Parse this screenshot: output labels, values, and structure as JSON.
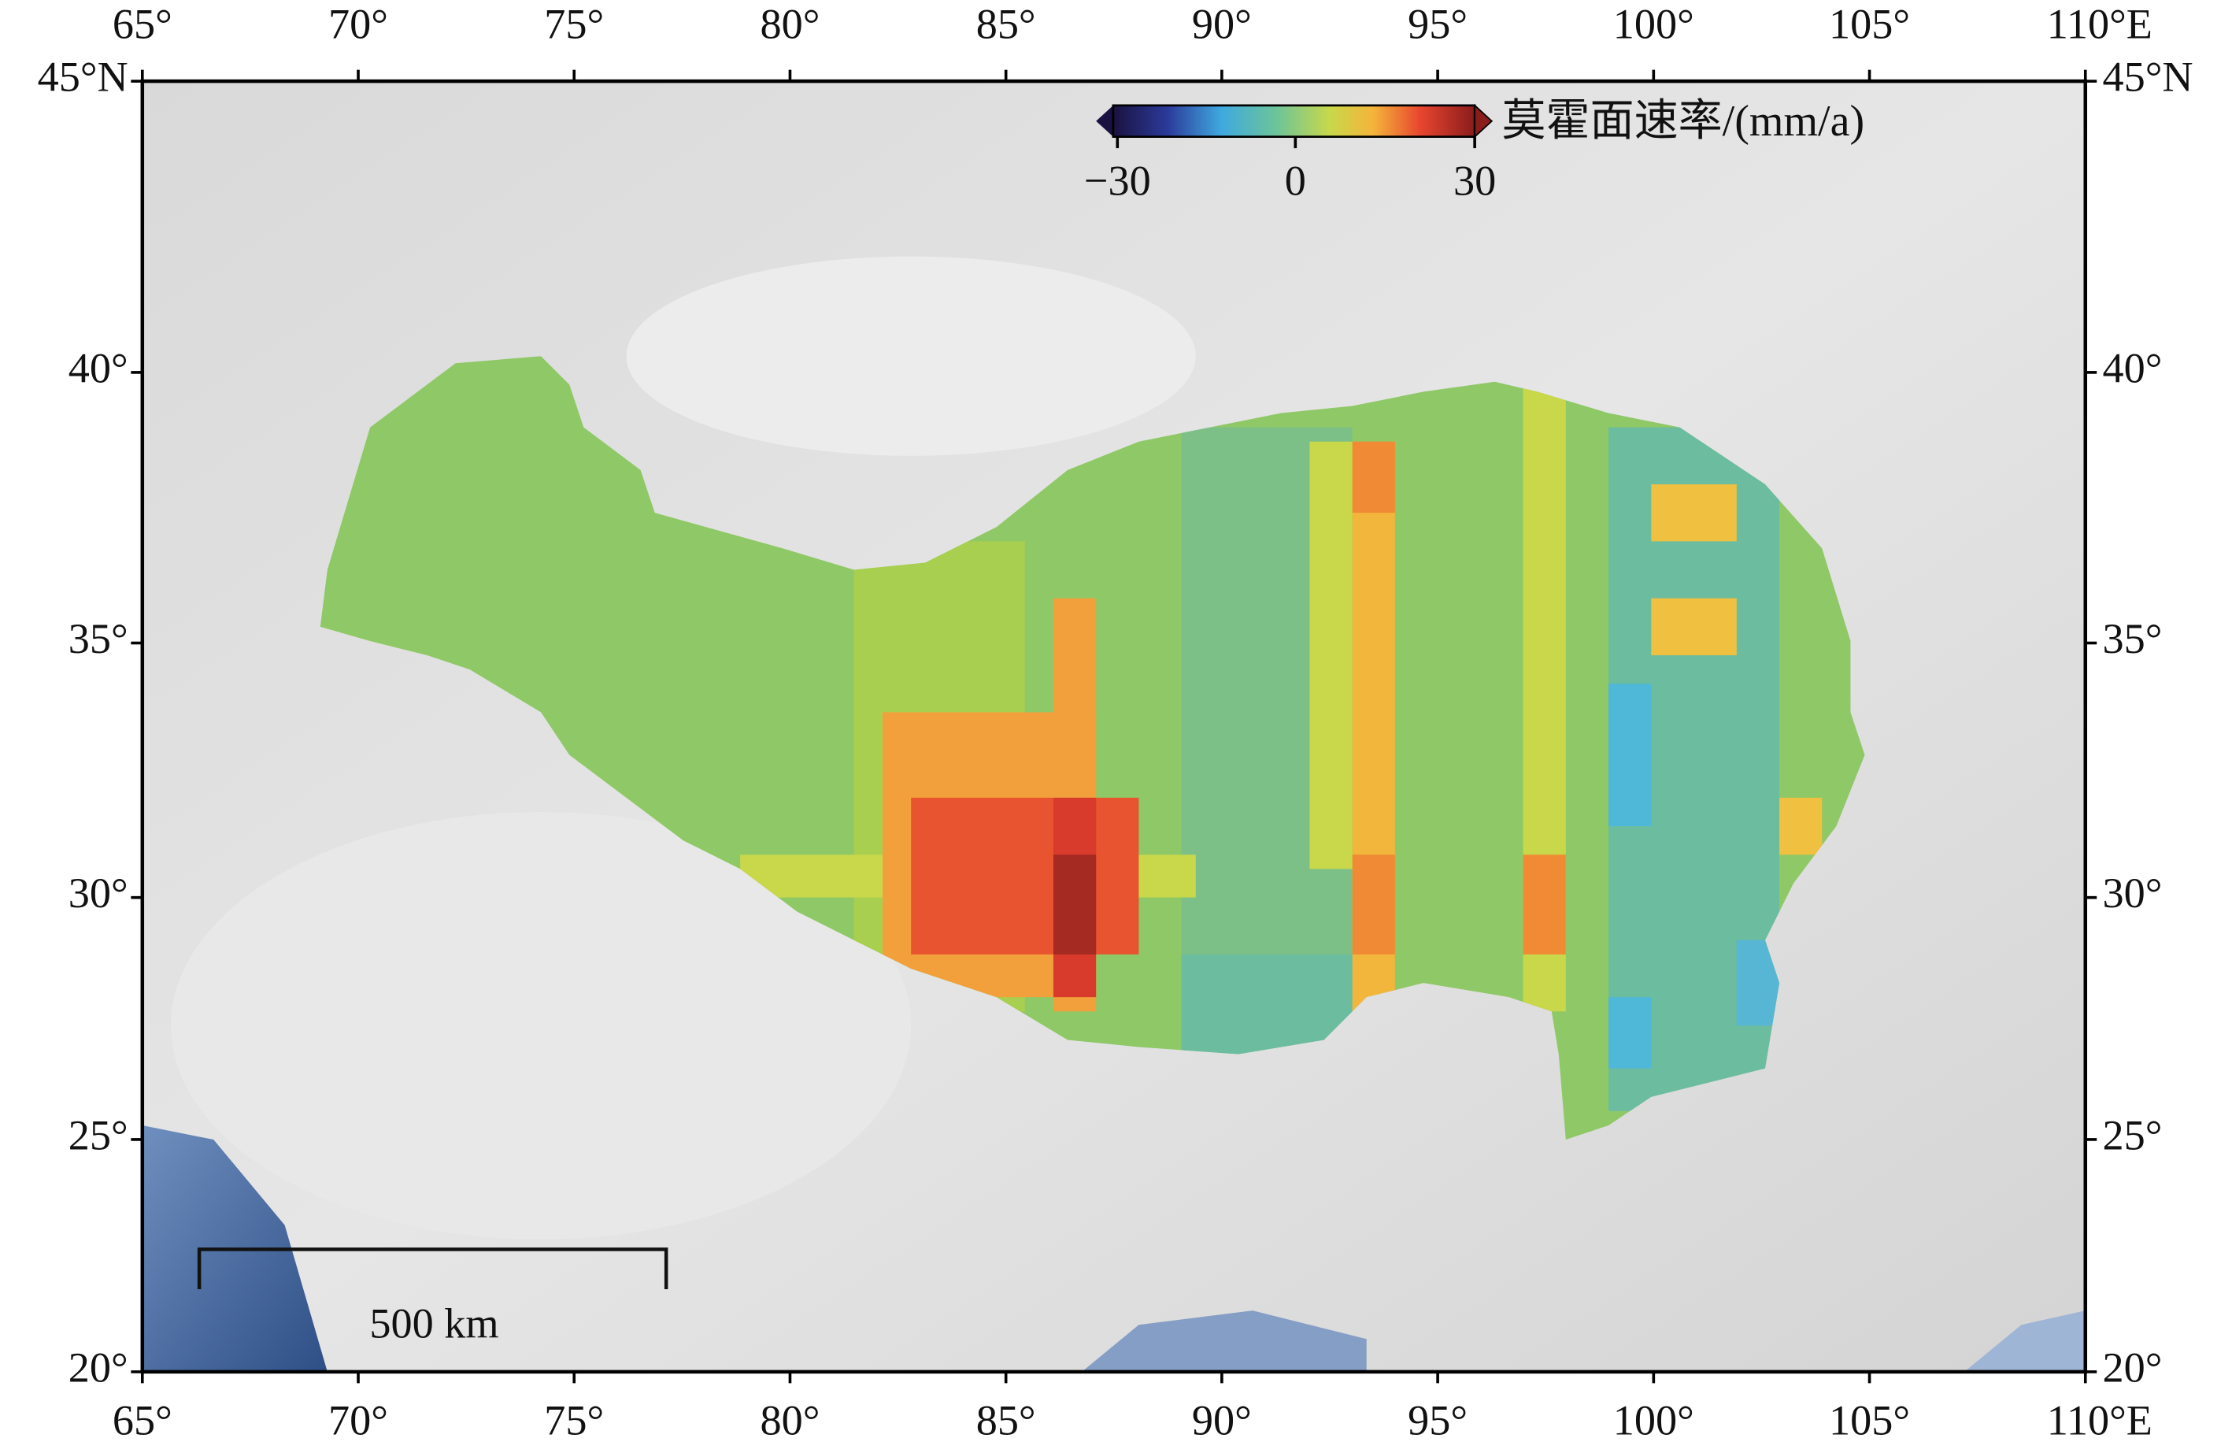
{
  "map": {
    "x_labels": [
      "65°",
      "70°",
      "75°",
      "80°",
      "85°",
      "90°",
      "95°",
      "100°",
      "105°",
      "110°E"
    ],
    "y_labels": [
      "45°N",
      "40°",
      "35°",
      "30°",
      "25°",
      "20°"
    ],
    "colorbar": {
      "title": "莫霍面速率/(mm/a)",
      "ticks": [
        "−30",
        "0",
        "30"
      ]
    },
    "scale_bar": "500 km"
  }
}
